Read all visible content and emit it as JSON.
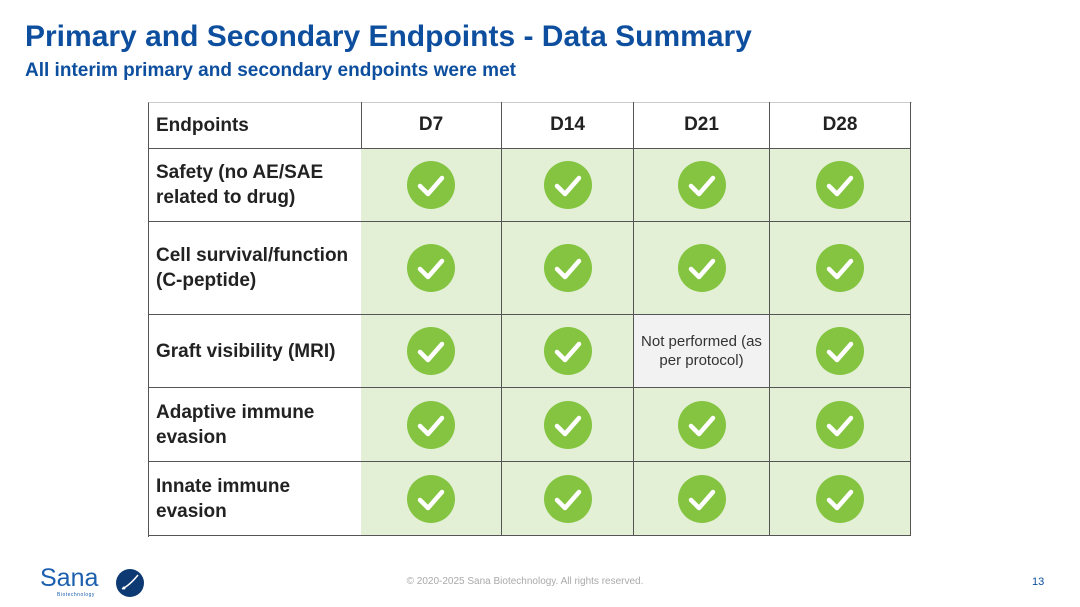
{
  "header": {
    "title": "Primary and Secondary Endpoints - Data Summary",
    "subtitle": "All interim primary and secondary endpoints were met"
  },
  "table": {
    "columns": [
      "Endpoints",
      "D7",
      "D14",
      "D21",
      "D28"
    ],
    "rows": [
      {
        "label": "Safety (no AE/SAE related to drug)",
        "cells": [
          true,
          true,
          true,
          true
        ]
      },
      {
        "label": "Cell survival/function (C-peptide)",
        "cells": [
          true,
          true,
          true,
          true
        ]
      },
      {
        "label": "Graft visibility (MRI)",
        "cells": [
          true,
          true,
          "Not performed (as per protocol)",
          true
        ]
      },
      {
        "label": "Adaptive immune evasion",
        "cells": [
          true,
          true,
          true,
          true
        ]
      },
      {
        "label": "Innate immune evasion",
        "cells": [
          true,
          true,
          true,
          true
        ]
      }
    ]
  },
  "footer": {
    "logo": "Sana",
    "logo_sub": "Biotechnology",
    "copyright": "© 2020-2025 Sana Biotechnology. All rights reserved.",
    "page": "13"
  }
}
